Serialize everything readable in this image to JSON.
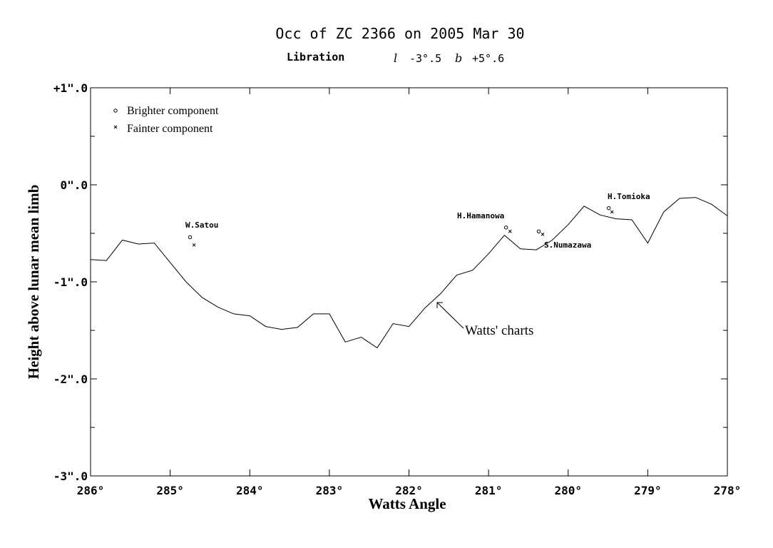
{
  "chart_data": {
    "type": "line",
    "title": "Occ of ZC 2366 on 2005 Mar 30",
    "libration": {
      "label": "Libration",
      "l_name": "l",
      "l_value": "-3°.5",
      "b_name": "b",
      "b_value": "+5°.6"
    },
    "xlabel": "Watts Angle",
    "ylabel": "Height above lunar mean limb",
    "xlim": [
      286,
      278
    ],
    "ylim": [
      -3,
      1
    ],
    "x_ticks": [
      {
        "value": 286,
        "label": "286°"
      },
      {
        "value": 285,
        "label": "285°"
      },
      {
        "value": 284,
        "label": "284°"
      },
      {
        "value": 283,
        "label": "283°"
      },
      {
        "value": 282,
        "label": "282°"
      },
      {
        "value": 281,
        "label": "281°"
      },
      {
        "value": 280,
        "label": "280°"
      },
      {
        "value": 279,
        "label": "279°"
      },
      {
        "value": 278,
        "label": "278°"
      }
    ],
    "y_ticks": [
      {
        "value": 1,
        "label": "+1\".0"
      },
      {
        "value": 0,
        "label": "0\".0"
      },
      {
        "value": -1,
        "label": "-1\".0"
      },
      {
        "value": -2,
        "label": "-2\".0"
      },
      {
        "value": -3,
        "label": "-3\".0"
      }
    ],
    "legend": {
      "placement": "top-left",
      "items": [
        {
          "symbol": "o",
          "label": "Brighter component"
        },
        {
          "symbol": "x",
          "label": "Fainter component"
        }
      ]
    },
    "profile": {
      "label": "Watts' charts",
      "x": [
        286.0,
        285.8,
        285.6,
        285.4,
        285.2,
        285.0,
        284.8,
        284.6,
        284.4,
        284.2,
        284.0,
        283.8,
        283.6,
        283.4,
        283.2,
        283.0,
        282.8,
        282.6,
        282.4,
        282.2,
        282.0,
        281.8,
        281.6,
        281.4,
        281.2,
        281.0,
        280.8,
        280.6,
        280.4,
        280.2,
        280.0,
        279.8,
        279.6,
        279.4,
        279.2,
        279.0,
        278.8,
        278.6,
        278.4,
        278.2,
        278.0
      ],
      "y": [
        -0.77,
        -0.78,
        -0.57,
        -0.61,
        -0.6,
        -0.8,
        -1.0,
        -1.16,
        -1.26,
        -1.33,
        -1.35,
        -1.46,
        -1.49,
        -1.47,
        -1.33,
        -1.33,
        -1.62,
        -1.57,
        -1.68,
        -1.43,
        -1.46,
        -1.27,
        -1.12,
        -0.93,
        -0.88,
        -0.71,
        -0.52,
        -0.66,
        -0.67,
        -0.57,
        -0.41,
        -0.22,
        -0.31,
        -0.35,
        -0.36,
        -0.6,
        -0.28,
        -0.14,
        -0.13,
        -0.2,
        -0.32
      ]
    },
    "observers": [
      {
        "name": "W.Satou",
        "bright": {
          "x": 284.75,
          "y": -0.54
        },
        "faint": {
          "x": 284.7,
          "y": -0.62
        }
      },
      {
        "name": "H.Hamanowa",
        "bright": {
          "x": 280.78,
          "y": -0.44
        },
        "faint": {
          "x": 280.73,
          "y": -0.48
        }
      },
      {
        "name": "S.Numazawa",
        "bright": {
          "x": 280.37,
          "y": -0.48
        },
        "faint": {
          "x": 280.32,
          "y": -0.51
        }
      },
      {
        "name": "H.Tomioka",
        "bright": {
          "x": 279.49,
          "y": -0.24
        },
        "faint": {
          "x": 279.45,
          "y": -0.28
        }
      }
    ]
  }
}
